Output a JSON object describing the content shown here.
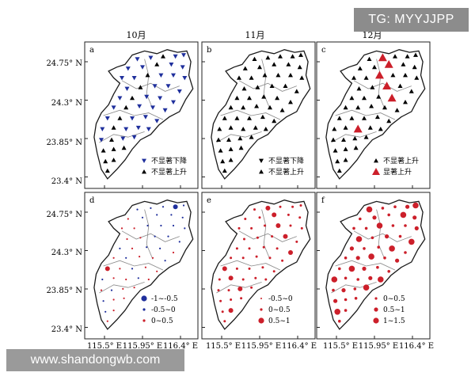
{
  "watermarks": {
    "top": "TG: MYYJJPP",
    "bottom": "www.shandongwb.com"
  },
  "map_data": {
    "figure_type": "small-multiple station trend maps",
    "columns": [
      "10月",
      "11月",
      "12月"
    ],
    "y_axis_ticks": [
      "24.75° N",
      "24.3° N",
      "23.85° N",
      "23.4° N"
    ],
    "x_axis_ticks": [
      "115.5° E",
      "115.95° E",
      "116.4° E"
    ],
    "panels": [
      {
        "id": "a",
        "row": "trend",
        "month": "10月",
        "legend": [
          {
            "symbol": "down-triangle",
            "color": "#1f2f9c",
            "label": "不显著下降"
          },
          {
            "symbol": "up-triangle",
            "color": "#000000",
            "label": "不显著上升"
          }
        ]
      },
      {
        "id": "b",
        "row": "trend",
        "month": "11月",
        "legend": [
          {
            "symbol": "down-triangle",
            "color": "#000000",
            "label": "不显著下降"
          },
          {
            "symbol": "up-triangle",
            "color": "#000000",
            "label": "不显著上升"
          }
        ]
      },
      {
        "id": "c",
        "row": "trend",
        "month": "12月",
        "legend": [
          {
            "symbol": "up-triangle",
            "color": "#000000",
            "label": "不显著上升"
          },
          {
            "symbol": "up-triangle-large",
            "color": "#cc1f2a",
            "label": "显著上升"
          }
        ]
      },
      {
        "id": "d",
        "row": "magnitude",
        "month": "10月",
        "legend": [
          {
            "symbol": "dot-large",
            "color": "#1f2f9c",
            "label": "-1~-0.5"
          },
          {
            "symbol": "dot-small",
            "color": "#1f2f9c",
            "label": "-0.5~0"
          },
          {
            "symbol": "dot-small",
            "color": "#cc1f2a",
            "label": "0~0.5"
          }
        ]
      },
      {
        "id": "e",
        "row": "magnitude",
        "month": "11月",
        "legend": [
          {
            "symbol": "dot-tiny",
            "color": "#cc1f2a",
            "label": "-0.5~0"
          },
          {
            "symbol": "dot-small",
            "color": "#cc1f2a",
            "label": "0~0.5"
          },
          {
            "symbol": "dot-large",
            "color": "#cc1f2a",
            "label": "0.5~1"
          }
        ]
      },
      {
        "id": "f",
        "row": "magnitude",
        "month": "12月",
        "legend": [
          {
            "symbol": "dot-small",
            "color": "#cc1f2a",
            "label": "0~0.5"
          },
          {
            "symbol": "dot-medium",
            "color": "#cc1f2a",
            "label": "0.5~1"
          },
          {
            "symbol": "dot-large",
            "color": "#cc1f2a",
            "label": "1~1.5"
          }
        ]
      }
    ]
  },
  "colors": {
    "boundary": "#1a1a1a",
    "subbasin": "#8a8a8a",
    "blue": "#1f2f9c",
    "red": "#cc1f2a",
    "black": "#000000"
  }
}
